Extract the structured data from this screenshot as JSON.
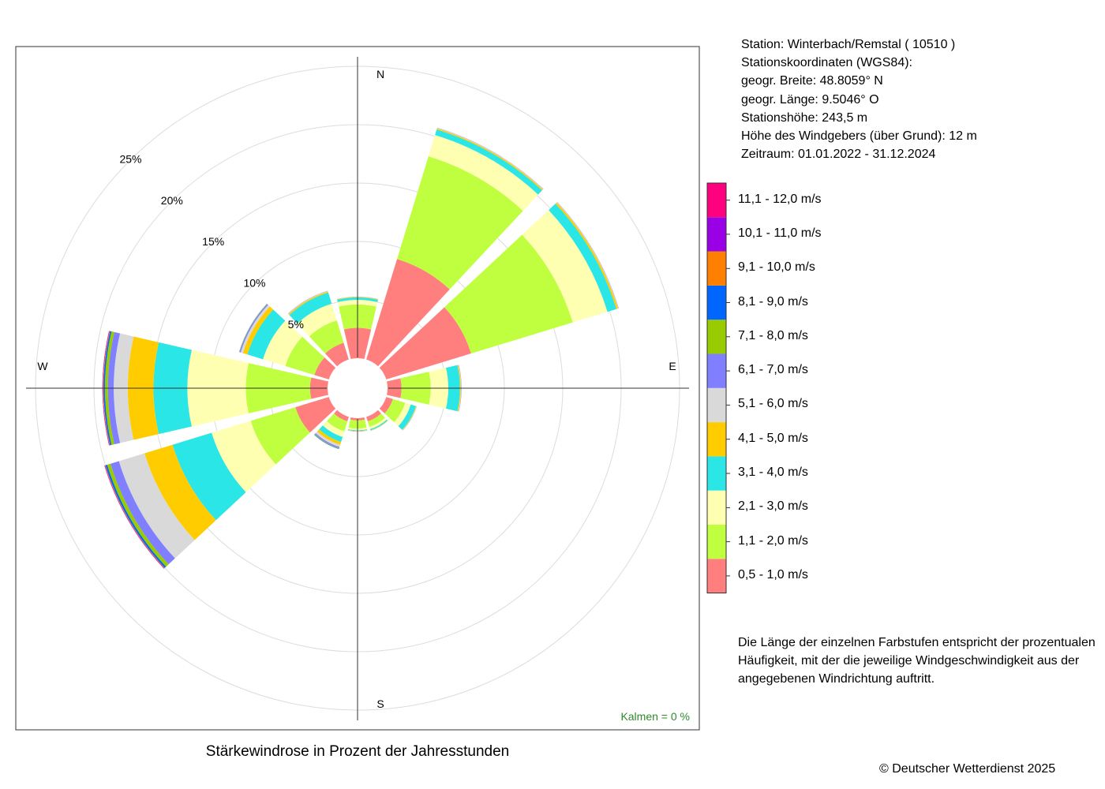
{
  "station_info": {
    "station": "Station:  Winterbach/Remstal  ( 10510 )",
    "coords_heading": "Stationskoordinaten (WGS84):",
    "latitude": "geogr. Breite: 48.8059° N",
    "longitude": "geogr. Länge:   9.5046° O",
    "elevation": "Stationshöhe: 243,5 m",
    "sensor_height": "Höhe des Windgebers (über Grund): 12 m",
    "period": "Zeitraum: 01.01.2022 - 31.12.2024"
  },
  "description": {
    "line1": "Die Länge der einzelnen Farbstufen entspricht der prozentualen",
    "line2": "Häufigkeit, mit der die jeweilige Windgeschwindigkeit aus der",
    "line3": "angegebenen Windrichtung auftritt."
  },
  "copyright": "© Deutscher Wetterdienst  2025",
  "chart_data": {
    "type": "windrose",
    "title": "Stärkewindrose in Prozent der Jahresstunden",
    "calm_label": "Kalmen  =  0 %",
    "compass_labels": {
      "n": "N",
      "e": "E",
      "s": "S",
      "w": "W"
    },
    "ring_labels": [
      "5%",
      "10%",
      "15%",
      "20%",
      "25%"
    ],
    "ring_values": [
      5,
      10,
      15,
      20,
      25
    ],
    "grid": true,
    "sector_width_deg": 30,
    "speed_classes": [
      {
        "label": "0,5 - 1,0 m/s",
        "color": "#ff7f7f"
      },
      {
        "label": "1,1 - 2,0 m/s",
        "color": "#bfff3f"
      },
      {
        "label": "2,1 - 3,0 m/s",
        "color": "#ffffb2"
      },
      {
        "label": "3,1 - 4,0 m/s",
        "color": "#2ae6e6"
      },
      {
        "label": "4,1 - 5,0 m/s",
        "color": "#ffcc00"
      },
      {
        "label": "5,1 - 6,0 m/s",
        "color": "#d9d9d9"
      },
      {
        "label": "6,1 - 7,0 m/s",
        "color": "#7f7fff"
      },
      {
        "label": "7,1 - 8,0 m/s",
        "color": "#99cc00"
      },
      {
        "label": "8,1 - 9,0 m/s",
        "color": "#0066ff"
      },
      {
        "label": "9,1 - 10,0 m/s",
        "color": "#ff8000"
      },
      {
        "label": "10,1 - 11,0 m/s",
        "color": "#9900e6"
      },
      {
        "label": "11,1 - 12,0 m/s",
        "color": "#ff007f"
      }
    ],
    "sectors": [
      {
        "direction_deg": 0,
        "values": [
          2.6,
          2.0,
          0.4,
          0.2,
          0.05,
          0.02,
          0.01,
          0,
          0,
          0,
          0,
          0
        ]
      },
      {
        "direction_deg": 30,
        "values": [
          9.0,
          9.2,
          1.9,
          0.5,
          0.1,
          0.05,
          0.02,
          0,
          0,
          0,
          0,
          0
        ]
      },
      {
        "direction_deg": 60,
        "values": [
          7.6,
          9.1,
          3.1,
          0.8,
          0.15,
          0.05,
          0.02,
          0,
          0,
          0,
          0,
          0
        ]
      },
      {
        "direction_deg": 90,
        "values": [
          1.2,
          2.5,
          1.5,
          1.0,
          0.08,
          0.04,
          0.02,
          0,
          0,
          0,
          0,
          0
        ]
      },
      {
        "direction_deg": 120,
        "values": [
          0.6,
          1.1,
          0.5,
          0.45,
          0.05,
          0.03,
          0.01,
          0,
          0,
          0,
          0,
          0
        ]
      },
      {
        "direction_deg": 150,
        "values": [
          0.4,
          0.5,
          0.2,
          0.1,
          0.03,
          0.02,
          0.01,
          0,
          0,
          0,
          0,
          0
        ]
      },
      {
        "direction_deg": 180,
        "values": [
          0.2,
          0.7,
          0.15,
          0.05,
          0.03,
          0.02,
          0.01,
          0,
          0,
          0,
          0,
          0
        ]
      },
      {
        "direction_deg": 210,
        "values": [
          0.4,
          0.9,
          0.5,
          0.45,
          0.25,
          0.2,
          0.1,
          0.05,
          0.03,
          0,
          0,
          0
        ]
      },
      {
        "direction_deg": 240,
        "values": [
          3.0,
          4.0,
          3.5,
          3.5,
          2.5,
          2.3,
          0.75,
          0.3,
          0.15,
          0.05,
          0.03,
          0.02
        ]
      },
      {
        "direction_deg": 270,
        "values": [
          1.5,
          5.5,
          5.0,
          2.9,
          2.2,
          1.2,
          0.5,
          0.25,
          0.12,
          0.05,
          0.03,
          0.02
        ]
      },
      {
        "direction_deg": 300,
        "values": [
          1.3,
          2.6,
          2.0,
          1.4,
          0.4,
          0.2,
          0.1,
          0.03,
          0.01,
          0,
          0,
          0
        ]
      },
      {
        "direction_deg": 330,
        "values": [
          1.5,
          2.0,
          1.5,
          1.0,
          0.1,
          0.05,
          0.02,
          0,
          0,
          0,
          0,
          0
        ]
      }
    ]
  }
}
